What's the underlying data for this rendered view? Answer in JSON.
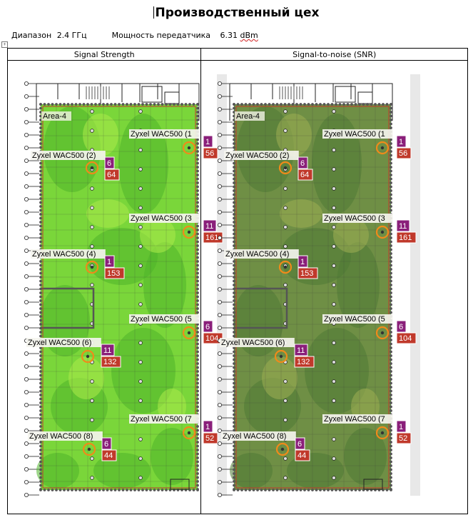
{
  "title": "Производственный цех",
  "params": {
    "band_label": "Диапазон",
    "band_value": "2.4 ГГц",
    "power_label": "Мощность передатчика",
    "power_value": "6.31",
    "power_unit": "dBm"
  },
  "columns": [
    "Signal Strength",
    "Signal-to-noise (SNR)"
  ],
  "area_label": "Area-4",
  "access_points": [
    {
      "label": "Zyxel WAC500 (1",
      "channel": "1",
      "value": "56"
    },
    {
      "label": "Zyxel WAC500 (2)",
      "channel": "6",
      "value": "64"
    },
    {
      "label": "Zyxel WAC500 (3",
      "channel": "11",
      "value": "161"
    },
    {
      "label": "Zyxel WAC500 (4)",
      "channel": "1",
      "value": "153"
    },
    {
      "label": "Zyxel WAC500 (5",
      "channel": "6",
      "value": "104"
    },
    {
      "label": "Zyxel WAC500 (6)",
      "channel": "11",
      "value": "132"
    },
    {
      "label": "Zyxel WAC500 (7",
      "channel": "1",
      "value": "52"
    },
    {
      "label": "Zyxel WAC500 (8)",
      "channel": "6",
      "value": "44"
    }
  ],
  "colors": {
    "signal_fill": "#7ad63a",
    "signal_dark": "#4fb52a",
    "snr_fill": "#6f8f45",
    "snr_dark": "#4e7a35",
    "channel_badge": "#8a1f7a",
    "value_badge": "#c0392b",
    "ap_ring": "#f08a1a",
    "wall": "#555555"
  }
}
